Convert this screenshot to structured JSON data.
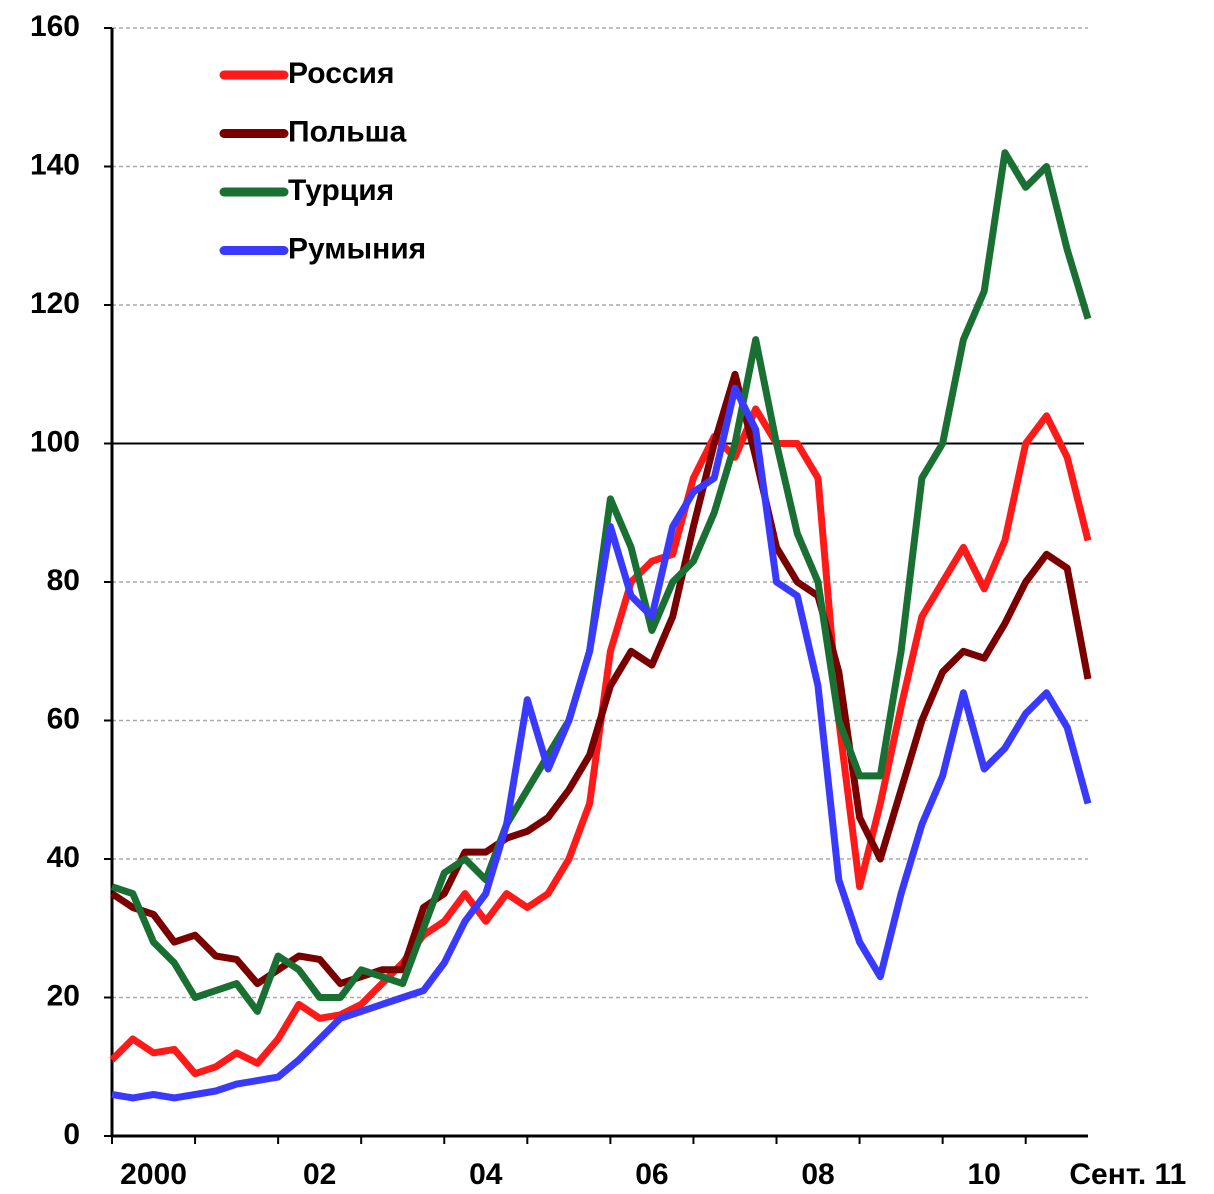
{
  "chart_data": {
    "type": "line",
    "x": [
      2000,
      2000.25,
      2000.5,
      2000.75,
      2001,
      2001.25,
      2001.5,
      2001.75,
      2002,
      2002.25,
      2002.5,
      2002.75,
      2003,
      2003.25,
      2003.5,
      2003.75,
      2004,
      2004.25,
      2004.5,
      2004.75,
      2005,
      2005.25,
      2005.5,
      2005.75,
      2006,
      2006.25,
      2006.5,
      2006.75,
      2007,
      2007.25,
      2007.5,
      2007.75,
      2008,
      2008.25,
      2008.5,
      2008.75,
      2009,
      2009.25,
      2009.5,
      2009.75,
      2010,
      2010.25,
      2010.5,
      2010.75,
      2011,
      2011.25,
      2011.5,
      2011.75
    ],
    "series": [
      {
        "name": "Россия",
        "color": "#ff1a1a",
        "values": [
          11,
          14,
          12,
          12.5,
          9,
          10,
          12,
          10.5,
          14,
          19,
          17,
          17.5,
          19,
          22,
          25,
          29,
          31,
          35,
          31,
          35,
          33,
          35,
          40,
          48,
          70,
          80,
          83,
          84,
          95,
          101,
          98,
          105,
          100,
          100,
          95,
          60,
          36,
          48,
          62,
          75,
          80,
          85,
          79,
          86,
          100,
          104,
          98,
          86
        ]
      },
      {
        "name": "Польша",
        "color": "#7a0000",
        "values": [
          35,
          33,
          32,
          28,
          29,
          26,
          25.5,
          22,
          24,
          26,
          25.5,
          22,
          23,
          24,
          24,
          33,
          35,
          41,
          41,
          43,
          44,
          46,
          50,
          55,
          65,
          70,
          68,
          75,
          88,
          100,
          110,
          98,
          85,
          80,
          78,
          67,
          46,
          40,
          50,
          60,
          67,
          70,
          69,
          74,
          80,
          84,
          82,
          66
        ]
      },
      {
        "name": "Турция",
        "color": "#1a7033",
        "values": [
          36,
          35,
          28,
          25,
          20,
          21,
          22,
          18,
          26,
          24,
          20,
          20,
          24,
          23,
          22,
          30,
          38,
          40,
          37,
          45,
          50,
          55,
          60,
          70,
          92,
          85,
          73,
          80,
          83,
          90,
          100,
          115,
          100,
          87,
          80,
          60,
          52,
          52,
          70,
          95,
          100,
          115,
          122,
          142,
          137,
          140,
          128,
          118
        ]
      },
      {
        "name": "Румыния",
        "color": "#3a3aff",
        "values": [
          6,
          5.5,
          6,
          5.5,
          6,
          6.5,
          7.5,
          8,
          8.5,
          11,
          14,
          17,
          18,
          19,
          20,
          21,
          25,
          31,
          35,
          45,
          63,
          53,
          60,
          70,
          88,
          78,
          75,
          88,
          93,
          95,
          108,
          102,
          80,
          78,
          65,
          37,
          28,
          23,
          35,
          45,
          52,
          64,
          53,
          56,
          61,
          64,
          59,
          48
        ]
      }
    ],
    "xlim": [
      2000,
      2011.75
    ],
    "xticks": [
      {
        "value": 2000.5,
        "label": "2000"
      },
      {
        "value": 2002.5,
        "label": "02"
      },
      {
        "value": 2004.5,
        "label": "04"
      },
      {
        "value": 2006.5,
        "label": "06"
      },
      {
        "value": 2008.5,
        "label": "08"
      },
      {
        "value": 2010.5,
        "label": "10"
      },
      {
        "value": 2011.67,
        "label": "Сент. 11"
      }
    ],
    "ylim": [
      0,
      160
    ],
    "yticks": [
      0,
      20,
      40,
      60,
      80,
      100,
      120,
      140,
      160
    ],
    "reference_line": 100,
    "grid": true,
    "legend": "upper left"
  }
}
